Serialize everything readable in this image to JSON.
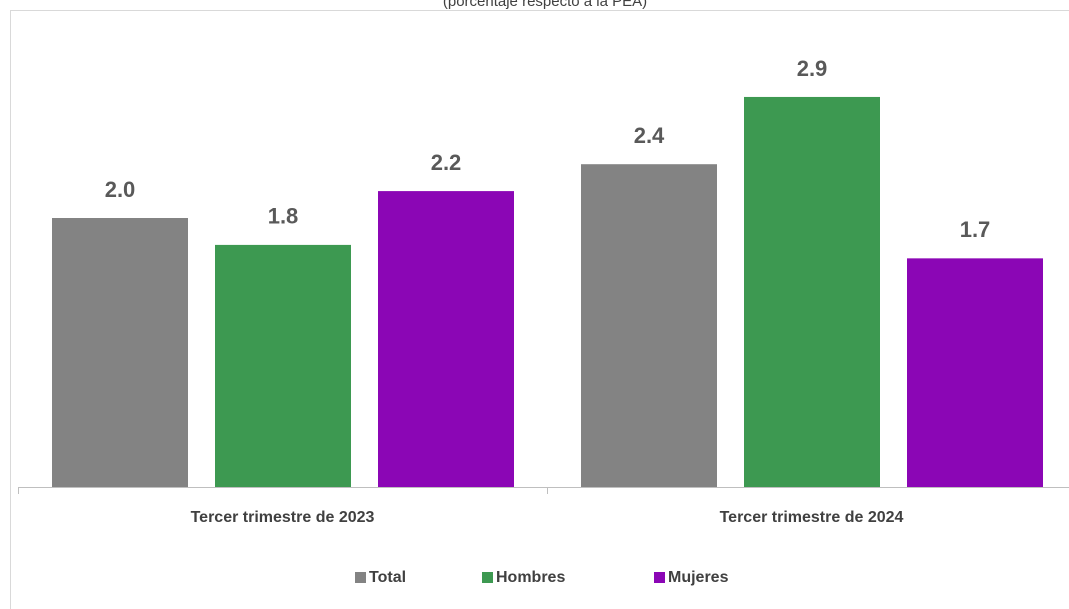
{
  "chart_data": {
    "type": "bar",
    "subtitle": "(porcentaje respecto a la PEA)",
    "categories": [
      "Tercer trimestre de 2023",
      "Tercer trimestre de 2024"
    ],
    "series": [
      {
        "name": "Total",
        "color": "#838383",
        "values": [
          2.0,
          2.4
        ],
        "value_labels": [
          "2.0",
          "2.4"
        ]
      },
      {
        "name": "Hombres",
        "color": "#3d9951",
        "values": [
          1.8,
          2.9
        ],
        "value_labels": [
          "1.8",
          "2.9"
        ]
      },
      {
        "name": "Mujeres",
        "color": "#8b06b5",
        "values": [
          2.2,
          1.7
        ],
        "value_labels": [
          "2.2",
          "1.7"
        ]
      }
    ],
    "legend": "bottom"
  }
}
